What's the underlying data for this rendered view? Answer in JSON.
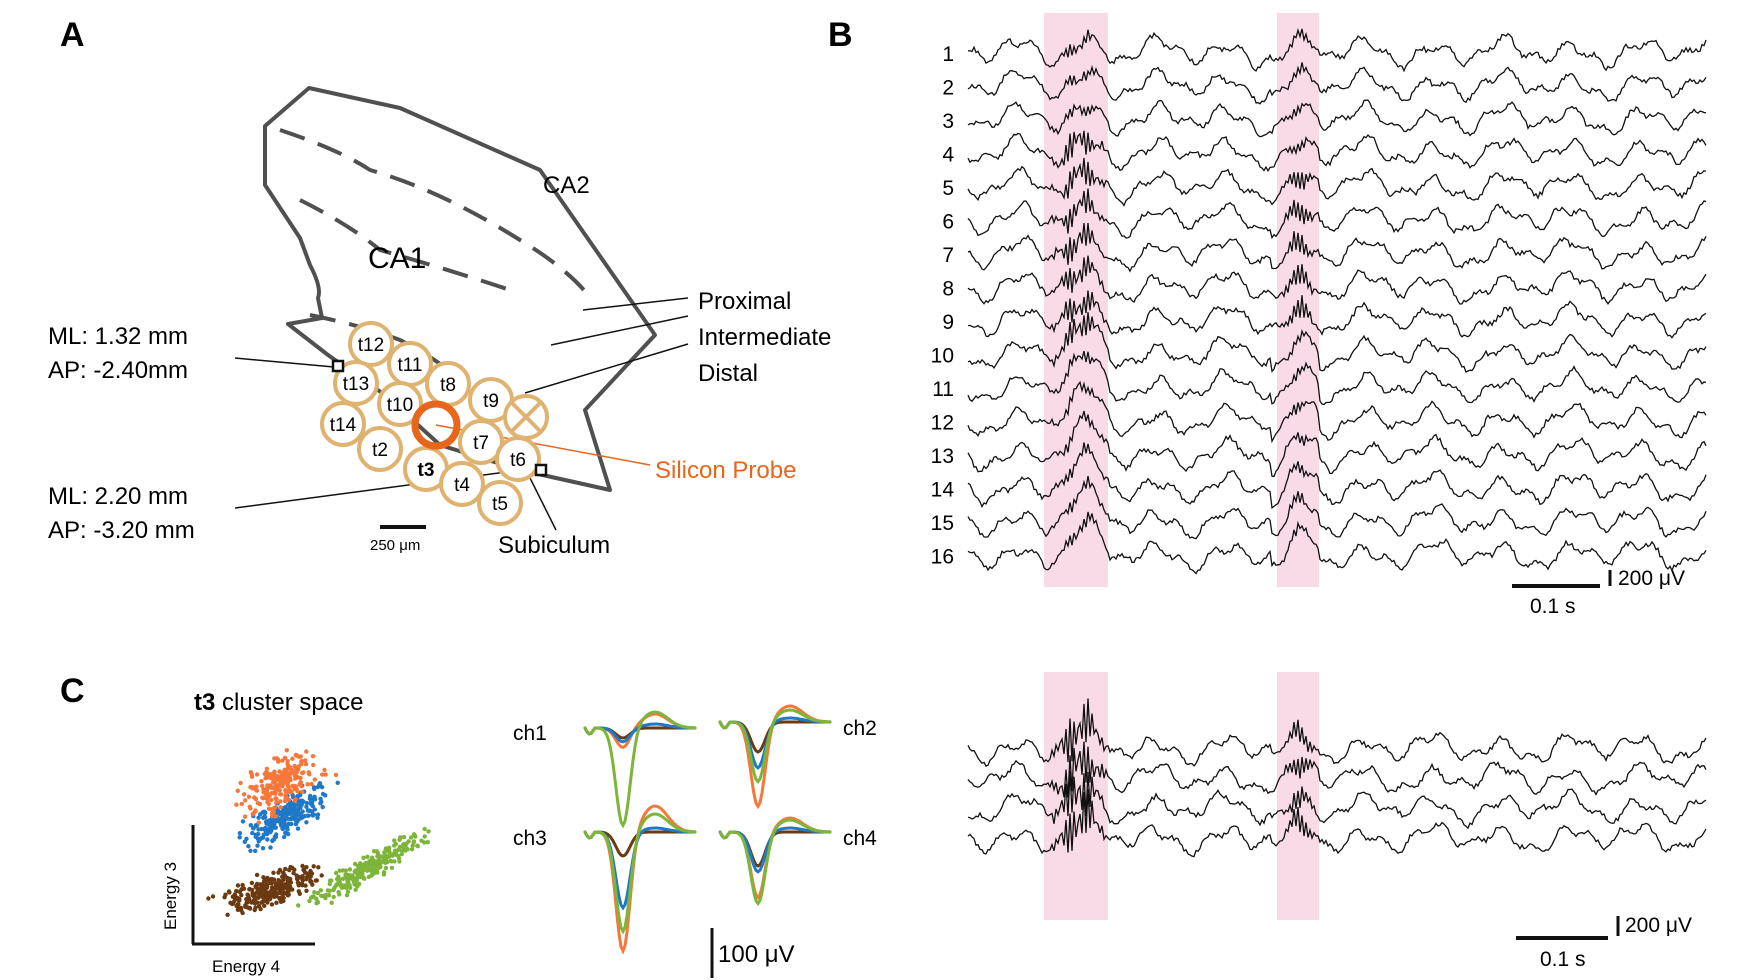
{
  "colors": {
    "probe": "#e8661c",
    "tetrode_ring": "#dfb270",
    "outline": "#505050",
    "highlight": "#f8dbe6",
    "orange": "#f7773a",
    "blue": "#1f78c8",
    "brown": "#6b3a10",
    "green": "#7db53a",
    "trace": "#111111"
  },
  "panel_a": {
    "letter": "A",
    "region_ca1": "CA1",
    "region_ca2": "CA2",
    "subiculum": "Subiculum",
    "proximal": "Proximal",
    "intermediate": "Intermediate",
    "distal": "Distal",
    "probe": "Silicon Probe",
    "coord1_ml": "ML: 1.32 mm",
    "coord1_ap": "AP: -2.40mm",
    "coord2_ml": "ML: 2.20 mm",
    "coord2_ap": "AP: -3.20 mm",
    "scale": "250 μm",
    "tetrodes": [
      "t12",
      "t11",
      "t13",
      "t8",
      "t10",
      "t9",
      "t14",
      "t7",
      "t2",
      "t3",
      "t6",
      "t4",
      "t5"
    ]
  },
  "panel_b": {
    "letter": "B",
    "channels": [
      "1",
      "2",
      "3",
      "4",
      "5",
      "6",
      "7",
      "8",
      "9",
      "10",
      "11",
      "12",
      "13",
      "14",
      "15",
      "16"
    ],
    "scale_v": "200 μV",
    "scale_t": "0.1 s"
  },
  "panel_c": {
    "letter": "C",
    "title_bold": "t3",
    "title_rest": " cluster space",
    "xlabel": "Energy 4",
    "ylabel": "Energy 3",
    "channels": [
      "ch1",
      "ch2",
      "ch3",
      "ch4"
    ],
    "wave_scale": "100 μV",
    "scale_v": "200 μV",
    "scale_t": "0.1 s"
  }
}
